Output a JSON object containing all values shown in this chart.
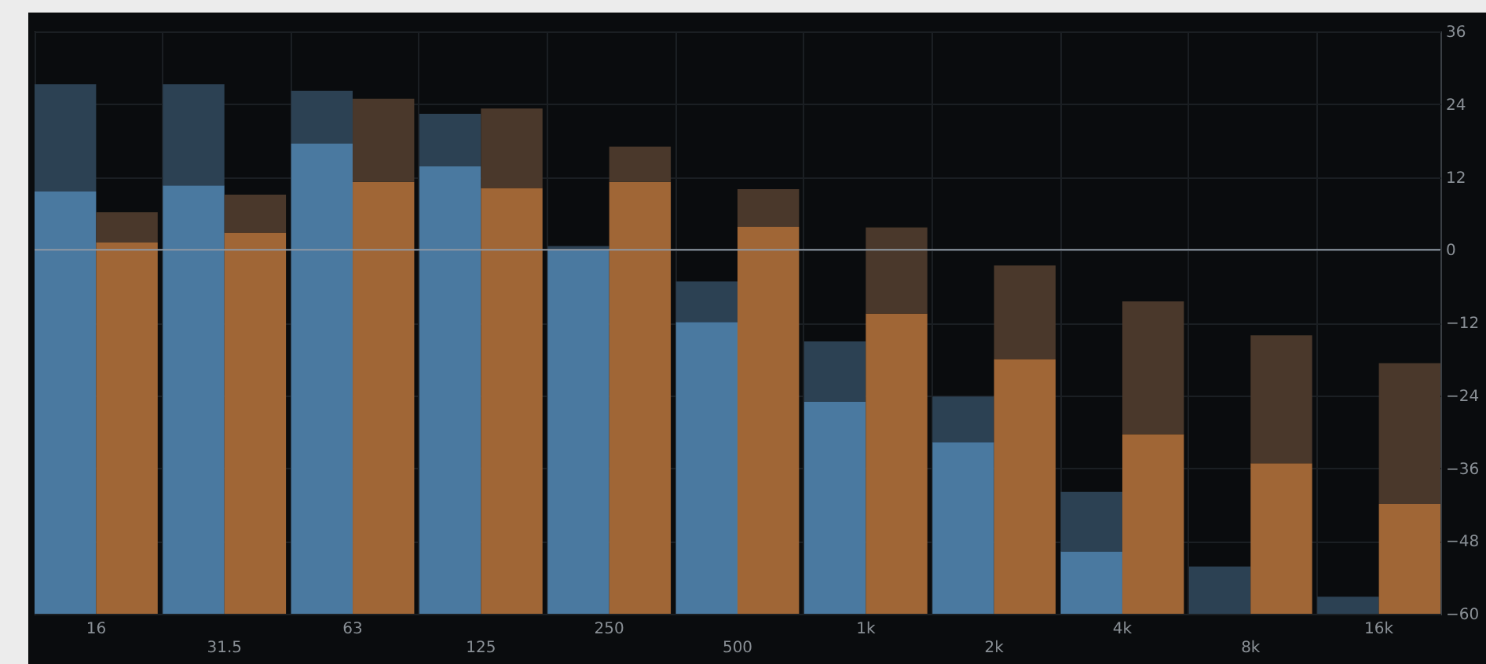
{
  "chart_data": {
    "type": "bar",
    "categories": [
      "16",
      "31.5",
      "63",
      "125",
      "250",
      "500",
      "1k",
      "2k",
      "4k",
      "8k",
      "16k"
    ],
    "series": [
      {
        "color": "#4a79a0",
        "base": [
          -60,
          -60,
          -60,
          -60,
          -60,
          -60,
          -60,
          -60,
          -60,
          null,
          null
        ],
        "values": [
          69.6,
          70.6,
          77.5,
          73.8,
          60,
          48.1,
          35,
          28.3,
          10.3,
          null,
          null
        ]
      },
      {
        "color": "#2c4153",
        "base": [
          9.6,
          10.6,
          17.5,
          13.8,
          0,
          -11.9,
          -25,
          -31.7,
          -49.7,
          -60,
          -60
        ],
        "values": [
          17.7,
          16.7,
          8.7,
          8.6,
          0.6,
          6.7,
          9.9,
          7.5,
          9.8,
          7.8,
          2.8
        ]
      },
      {
        "color": "#a06636",
        "base": [
          -60,
          -60,
          -60,
          -60,
          -60,
          -60,
          -60,
          -60,
          -60,
          -60,
          -60
        ],
        "values": [
          61.2,
          62.8,
          71.2,
          70.2,
          71.2,
          63.8,
          49.5,
          42,
          29.6,
          24.8,
          18.1
        ]
      },
      {
        "color": "#4a382b",
        "base": [
          1.2,
          2.8,
          11.2,
          10.2,
          11.2,
          3.8,
          -10.5,
          -18,
          -30.4,
          -35.2,
          -41.9
        ],
        "values": [
          5,
          6.3,
          13.7,
          13.1,
          5.8,
          6.2,
          14.2,
          15.4,
          21.9,
          21.1,
          23.2
        ]
      }
    ],
    "ylim": [
      -60,
      36
    ],
    "yticks": [
      -60,
      -48,
      -36,
      -24,
      -12,
      0,
      12,
      24,
      36
    ],
    "grid": true,
    "ref_lines": [
      {
        "axis": "y",
        "value": 0,
        "color": "#8f99a3"
      }
    ]
  }
}
